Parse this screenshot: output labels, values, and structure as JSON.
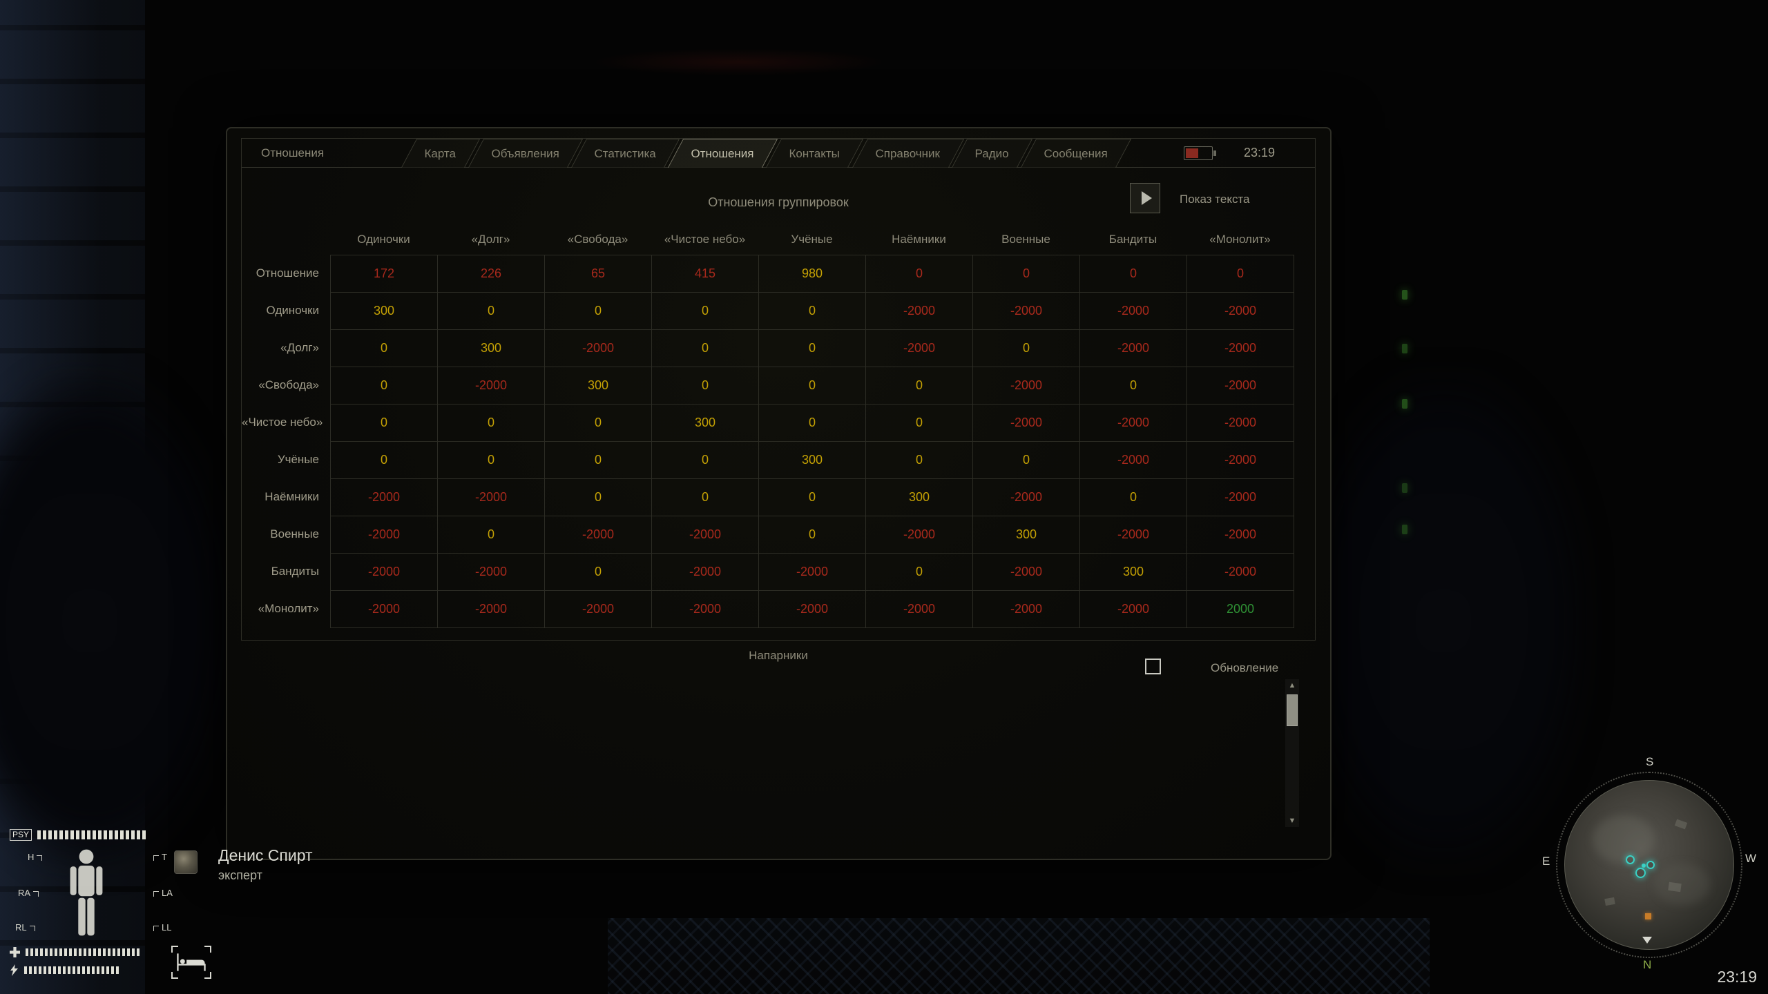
{
  "pda": {
    "corner_label": "Отношения",
    "clock": "23:19",
    "tabs": [
      {
        "label": "Карта",
        "active": false
      },
      {
        "label": "Объявления",
        "active": false
      },
      {
        "label": "Статистика",
        "active": false
      },
      {
        "label": "Отношения",
        "active": true
      },
      {
        "label": "Контакты",
        "active": false
      },
      {
        "label": "Справочник",
        "active": false
      },
      {
        "label": "Радио",
        "active": false
      },
      {
        "label": "Сообщения",
        "active": false
      }
    ],
    "title": "Отношения группировок",
    "show_text_label": "Показ текста",
    "relations_table": {
      "columns": [
        "Одиночки",
        "«Долг»",
        "«Свобода»",
        "«Чистое небо»",
        "Учёные",
        "Наёмники",
        "Военные",
        "Бандиты",
        "«Монолит»"
      ],
      "rows": [
        {
          "label": "Отношение",
          "cells": [
            {
              "v": "172",
              "c": "red"
            },
            {
              "v": "226",
              "c": "red"
            },
            {
              "v": "65",
              "c": "red"
            },
            {
              "v": "415",
              "c": "red"
            },
            {
              "v": "980",
              "c": "yellow"
            },
            {
              "v": "0",
              "c": "red"
            },
            {
              "v": "0",
              "c": "red"
            },
            {
              "v": "0",
              "c": "red"
            },
            {
              "v": "0",
              "c": "red"
            }
          ]
        },
        {
          "label": "Одиночки",
          "cells": [
            {
              "v": "300",
              "c": "yellow"
            },
            {
              "v": "0",
              "c": "yellow"
            },
            {
              "v": "0",
              "c": "yellow"
            },
            {
              "v": "0",
              "c": "yellow"
            },
            {
              "v": "0",
              "c": "yellow"
            },
            {
              "v": "-2000",
              "c": "red"
            },
            {
              "v": "-2000",
              "c": "red"
            },
            {
              "v": "-2000",
              "c": "red"
            },
            {
              "v": "-2000",
              "c": "red"
            }
          ]
        },
        {
          "label": "«Долг»",
          "cells": [
            {
              "v": "0",
              "c": "yellow"
            },
            {
              "v": "300",
              "c": "yellow"
            },
            {
              "v": "-2000",
              "c": "red"
            },
            {
              "v": "0",
              "c": "yellow"
            },
            {
              "v": "0",
              "c": "yellow"
            },
            {
              "v": "-2000",
              "c": "red"
            },
            {
              "v": "0",
              "c": "yellow"
            },
            {
              "v": "-2000",
              "c": "red"
            },
            {
              "v": "-2000",
              "c": "red"
            }
          ]
        },
        {
          "label": "«Свобода»",
          "cells": [
            {
              "v": "0",
              "c": "yellow"
            },
            {
              "v": "-2000",
              "c": "red"
            },
            {
              "v": "300",
              "c": "yellow"
            },
            {
              "v": "0",
              "c": "yellow"
            },
            {
              "v": "0",
              "c": "yellow"
            },
            {
              "v": "0",
              "c": "yellow"
            },
            {
              "v": "-2000",
              "c": "red"
            },
            {
              "v": "0",
              "c": "yellow"
            },
            {
              "v": "-2000",
              "c": "red"
            }
          ]
        },
        {
          "label": "«Чистое небо»",
          "cells": [
            {
              "v": "0",
              "c": "yellow"
            },
            {
              "v": "0",
              "c": "yellow"
            },
            {
              "v": "0",
              "c": "yellow"
            },
            {
              "v": "300",
              "c": "yellow"
            },
            {
              "v": "0",
              "c": "yellow"
            },
            {
              "v": "0",
              "c": "yellow"
            },
            {
              "v": "-2000",
              "c": "red"
            },
            {
              "v": "-2000",
              "c": "red"
            },
            {
              "v": "-2000",
              "c": "red"
            }
          ]
        },
        {
          "label": "Учёные",
          "cells": [
            {
              "v": "0",
              "c": "yellow"
            },
            {
              "v": "0",
              "c": "yellow"
            },
            {
              "v": "0",
              "c": "yellow"
            },
            {
              "v": "0",
              "c": "yellow"
            },
            {
              "v": "300",
              "c": "yellow"
            },
            {
              "v": "0",
              "c": "yellow"
            },
            {
              "v": "0",
              "c": "yellow"
            },
            {
              "v": "-2000",
              "c": "red"
            },
            {
              "v": "-2000",
              "c": "red"
            }
          ]
        },
        {
          "label": "Наёмники",
          "cells": [
            {
              "v": "-2000",
              "c": "red"
            },
            {
              "v": "-2000",
              "c": "red"
            },
            {
              "v": "0",
              "c": "yellow"
            },
            {
              "v": "0",
              "c": "yellow"
            },
            {
              "v": "0",
              "c": "yellow"
            },
            {
              "v": "300",
              "c": "yellow"
            },
            {
              "v": "-2000",
              "c": "red"
            },
            {
              "v": "0",
              "c": "yellow"
            },
            {
              "v": "-2000",
              "c": "red"
            }
          ]
        },
        {
          "label": "Военные",
          "cells": [
            {
              "v": "-2000",
              "c": "red"
            },
            {
              "v": "0",
              "c": "yellow"
            },
            {
              "v": "-2000",
              "c": "red"
            },
            {
              "v": "-2000",
              "c": "red"
            },
            {
              "v": "0",
              "c": "yellow"
            },
            {
              "v": "-2000",
              "c": "red"
            },
            {
              "v": "300",
              "c": "yellow"
            },
            {
              "v": "-2000",
              "c": "red"
            },
            {
              "v": "-2000",
              "c": "red"
            }
          ]
        },
        {
          "label": "Бандиты",
          "cells": [
            {
              "v": "-2000",
              "c": "red"
            },
            {
              "v": "-2000",
              "c": "red"
            },
            {
              "v": "0",
              "c": "yellow"
            },
            {
              "v": "-2000",
              "c": "red"
            },
            {
              "v": "-2000",
              "c": "red"
            },
            {
              "v": "0",
              "c": "yellow"
            },
            {
              "v": "-2000",
              "c": "red"
            },
            {
              "v": "300",
              "c": "yellow"
            },
            {
              "v": "-2000",
              "c": "red"
            }
          ]
        },
        {
          "label": "«Монолит»",
          "cells": [
            {
              "v": "-2000",
              "c": "red"
            },
            {
              "v": "-2000",
              "c": "red"
            },
            {
              "v": "-2000",
              "c": "red"
            },
            {
              "v": "-2000",
              "c": "red"
            },
            {
              "v": "-2000",
              "c": "red"
            },
            {
              "v": "-2000",
              "c": "red"
            },
            {
              "v": "-2000",
              "c": "red"
            },
            {
              "v": "-2000",
              "c": "red"
            },
            {
              "v": "2000",
              "c": "green"
            }
          ]
        }
      ]
    },
    "companions": {
      "title": "Напарники",
      "update_label": "Обновление"
    }
  },
  "hud": {
    "psy_label": "PSY",
    "body_labels": {
      "head": "H",
      "torso": "T",
      "right_arm": "RA",
      "left_arm": "LA",
      "right_leg": "RL",
      "left_leg": "LL"
    },
    "character": {
      "name": "Денис Спирт",
      "rank": "эксперт"
    }
  },
  "minimap": {
    "south": "S",
    "east": "E",
    "west": "W",
    "north": "N"
  },
  "footer": {
    "time": "23:19"
  },
  "colors": {
    "value_yellow": "#c3a004",
    "value_red": "#a8291c",
    "value_green": "#2f9235",
    "label_gray": "#8f8c7b"
  }
}
